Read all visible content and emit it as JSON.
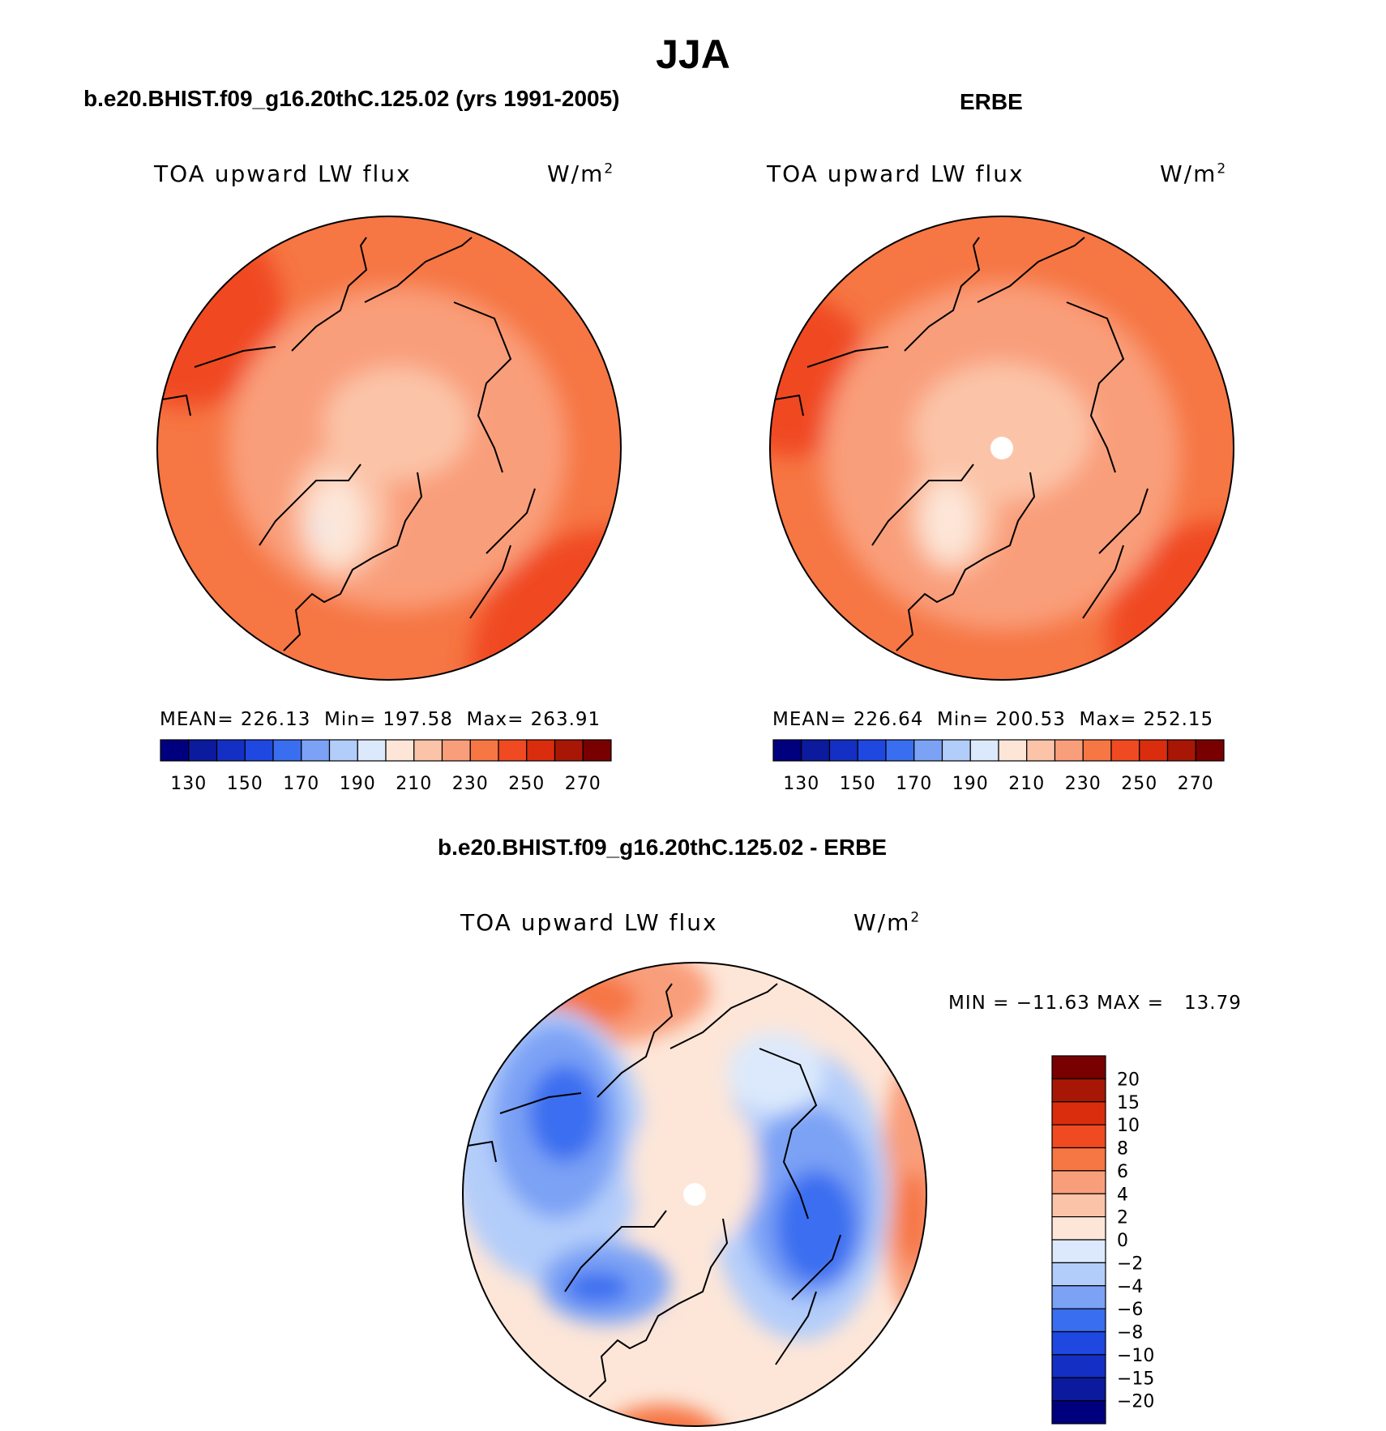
{
  "title": "JJA",
  "panels": {
    "model": {
      "case": "b.e20.BHIST.f09_g16.20thC.125.02 (yrs 1991-2005)",
      "variable": "TOA upward LW flux",
      "units_base": "W/m",
      "units_exp": "2",
      "stats": {
        "mean_label": "MEAN=",
        "mean": "226.13",
        "min_label": "Min=",
        "min": "197.58",
        "max_label": "Max=",
        "max": "263.91"
      }
    },
    "obs": {
      "case": "ERBE",
      "variable": "TOA upward LW flux",
      "units_base": "W/m",
      "units_exp": "2",
      "stats": {
        "mean_label": "MEAN=",
        "mean": "226.64",
        "min_label": "Min=",
        "min": "200.53",
        "max_label": "Max=",
        "max": "252.15"
      }
    },
    "diff": {
      "case": "b.e20.BHIST.f09_g16.20thC.125.02 - ERBE",
      "variable": "TOA upward LW flux",
      "units_base": "W/m",
      "units_exp": "2",
      "minmax_text": "MIN = −11.63 MAX =   13.79"
    }
  },
  "chart_data": [
    {
      "type": "heatmap",
      "projection": "north-polar-stereographic",
      "title": "b.e20.BHIST.f09_g16.20thC.125.02 (yrs 1991-2005)",
      "variable": "TOA upward LW flux",
      "units": "W/m^2",
      "mean": 226.13,
      "min": 197.58,
      "max": 263.91,
      "colorbar": {
        "orientation": "horizontal",
        "levels": [
          130,
          140,
          150,
          160,
          170,
          180,
          190,
          200,
          210,
          220,
          230,
          240,
          250,
          260,
          270
        ],
        "tick_labels": [
          "130",
          "150",
          "170",
          "190",
          "210",
          "230",
          "250",
          "270"
        ],
        "colors": [
          "#00007f",
          "#0c1a9e",
          "#1430c4",
          "#1e48e0",
          "#3a6ef0",
          "#7ca2f5",
          "#b3cdfa",
          "#dce9fc",
          "#fde6d8",
          "#fbc4a8",
          "#f99e7a",
          "#f67644",
          "#f04a22",
          "#d92d0e",
          "#a81605",
          "#780000"
        ]
      },
      "field_pattern": [
        {
          "region": "ocean-mid-latitudes",
          "value_range": [
            230,
            250
          ]
        },
        {
          "region": "arctic-ocean",
          "value_range": [
            210,
            230
          ]
        },
        {
          "region": "greenland-interior",
          "value_range": [
            190,
            210
          ]
        }
      ]
    },
    {
      "type": "heatmap",
      "projection": "north-polar-stereographic",
      "title": "ERBE",
      "variable": "TOA upward LW flux",
      "units": "W/m^2",
      "mean": 226.64,
      "min": 200.53,
      "max": 252.15,
      "colorbar": {
        "orientation": "horizontal",
        "levels": [
          130,
          140,
          150,
          160,
          170,
          180,
          190,
          200,
          210,
          220,
          230,
          240,
          250,
          260,
          270
        ],
        "tick_labels": [
          "130",
          "150",
          "170",
          "190",
          "210",
          "230",
          "250",
          "270"
        ],
        "colors": [
          "#00007f",
          "#0c1a9e",
          "#1430c4",
          "#1e48e0",
          "#3a6ef0",
          "#7ca2f5",
          "#b3cdfa",
          "#dce9fc",
          "#fde6d8",
          "#fbc4a8",
          "#f99e7a",
          "#f67644",
          "#f04a22",
          "#d92d0e",
          "#a81605",
          "#780000"
        ]
      },
      "field_pattern": [
        {
          "region": "ocean-mid-latitudes",
          "value_range": [
            230,
            250
          ]
        },
        {
          "region": "arctic-ocean",
          "value_range": [
            210,
            230
          ]
        },
        {
          "region": "north-pole",
          "value": "missing"
        }
      ]
    },
    {
      "type": "heatmap",
      "projection": "north-polar-stereographic",
      "title": "b.e20.BHIST.f09_g16.20thC.125.02 - ERBE",
      "variable": "TOA upward LW flux",
      "units": "W/m^2",
      "min": -11.63,
      "max": 13.79,
      "colorbar": {
        "orientation": "vertical",
        "levels": [
          -20,
          -15,
          -10,
          -8,
          -6,
          -4,
          -2,
          0,
          2,
          4,
          6,
          8,
          10,
          15,
          20
        ],
        "tick_labels": [
          "20",
          "15",
          "10",
          "8",
          "6",
          "4",
          "2",
          "0",
          "−2",
          "−4",
          "−6",
          "−8",
          "−10",
          "−15",
          "−20"
        ],
        "colors_top_to_bottom": [
          "#780000",
          "#a81605",
          "#d92d0e",
          "#f04a22",
          "#f67644",
          "#f99e7a",
          "#fbc4a8",
          "#fde6d8",
          "#dce9fc",
          "#b3cdfa",
          "#7ca2f5",
          "#3a6ef0",
          "#1e48e0",
          "#1430c4",
          "#0c1a9e",
          "#00007f"
        ]
      },
      "field_pattern": [
        {
          "region": "siberia-and-north-america",
          "value_range": [
            -10,
            -2
          ]
        },
        {
          "region": "arctic-ocean",
          "value_range": [
            0,
            2
          ]
        },
        {
          "region": "pacific-and-atlantic-mid-latitudes",
          "value_range": [
            2,
            8
          ]
        }
      ]
    }
  ]
}
